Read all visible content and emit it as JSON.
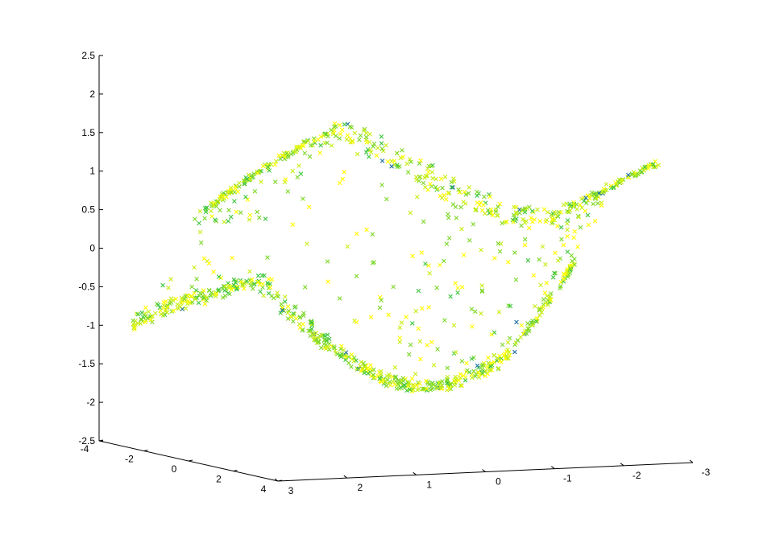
{
  "chart_data": {
    "type": "scatter",
    "title": "",
    "xlabel": "",
    "ylabel": "",
    "zlabel": "",
    "marker": "x",
    "grid": false,
    "colors": [
      "#ffff00",
      "#c8ee1a",
      "#7fd82a",
      "#3fc63f",
      "#1f6fa0"
    ],
    "xlim": [
      -4,
      4
    ],
    "ylim": [
      -3,
      3
    ],
    "zlim": [
      -2.5,
      2.5
    ],
    "z_ticks": [
      "2.5",
      "2",
      "1.5",
      "1",
      "0.5",
      "0",
      "-0.5",
      "-1",
      "-1.5",
      "-2",
      "-2.5"
    ],
    "x_ticks": [
      "-4",
      "-2",
      "0",
      "2",
      "4"
    ],
    "y_ticks": [
      "3",
      "2",
      "1",
      "0",
      "-1",
      "-2",
      "-3"
    ],
    "surface": "z = 2*sin(x*y)-like S-shaped sheet (swiss-roll style point cloud)",
    "n_points": 1200
  }
}
